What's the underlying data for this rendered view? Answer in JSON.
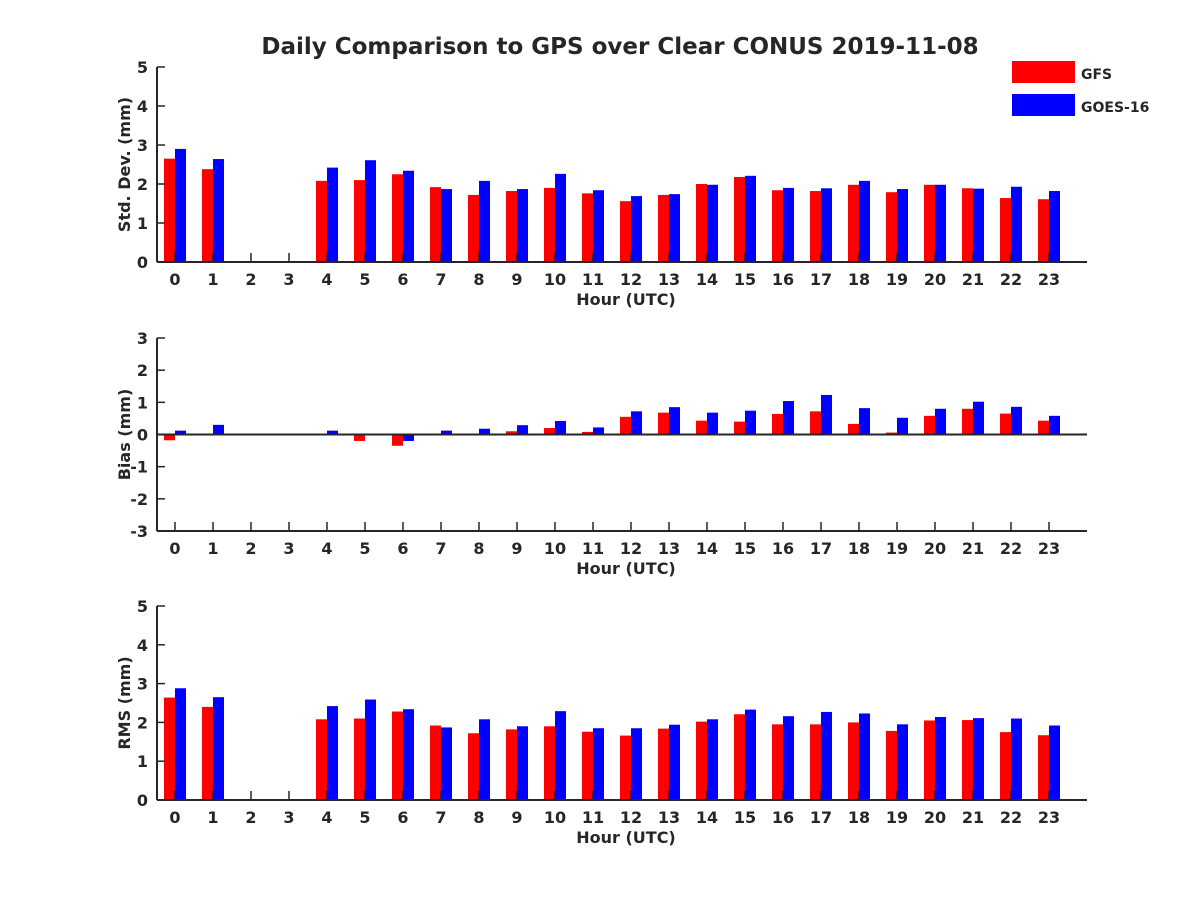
{
  "title": "Daily Comparison to GPS over Clear CONUS 2019-11-08",
  "legend": [
    {
      "name": "GFS",
      "color": "#ff0000"
    },
    {
      "name": "GOES-16",
      "color": "#0000ff"
    }
  ],
  "chart_data": [
    {
      "type": "bar",
      "title": "Daily Comparison to GPS over Clear CONUS 2019-11-08",
      "xlabel": "Hour (UTC)",
      "ylabel": "Std. Dev. (mm)",
      "ylim": [
        0,
        5
      ],
      "yticks": [
        "0",
        "1",
        "2",
        "3",
        "4",
        "5"
      ],
      "categories": [
        "0",
        "1",
        "2",
        "3",
        "4",
        "5",
        "6",
        "7",
        "8",
        "9",
        "10",
        "11",
        "12",
        "13",
        "14",
        "15",
        "16",
        "17",
        "18",
        "19",
        "20",
        "21",
        "22",
        "23"
      ],
      "series": [
        {
          "name": "GFS",
          "color": "#ff0000",
          "values": [
            2.65,
            2.38,
            null,
            null,
            2.08,
            2.1,
            2.25,
            1.92,
            1.72,
            1.82,
            1.9,
            1.76,
            1.56,
            1.72,
            2.0,
            2.18,
            1.84,
            1.82,
            1.98,
            1.79,
            1.98,
            1.89,
            1.64,
            1.61
          ]
        },
        {
          "name": "GOES-16",
          "color": "#0000ff",
          "values": [
            2.9,
            2.64,
            null,
            null,
            2.42,
            2.61,
            2.34,
            1.87,
            2.08,
            1.87,
            2.26,
            1.84,
            1.69,
            1.74,
            1.98,
            2.21,
            1.9,
            1.89,
            2.08,
            1.87,
            1.98,
            1.88,
            1.93,
            1.82
          ]
        }
      ]
    },
    {
      "type": "bar",
      "xlabel": "Hour (UTC)",
      "ylabel": "Bias (mm)",
      "ylim": [
        -3,
        3
      ],
      "yticks": [
        "-3",
        "-2",
        "-1",
        "0",
        "1",
        "2",
        "3"
      ],
      "categories": [
        "0",
        "1",
        "2",
        "3",
        "4",
        "5",
        "6",
        "7",
        "8",
        "9",
        "10",
        "11",
        "12",
        "13",
        "14",
        "15",
        "16",
        "17",
        "18",
        "19",
        "20",
        "21",
        "22",
        "23"
      ],
      "series": [
        {
          "name": "GFS",
          "color": "#ff0000",
          "values": [
            -0.18,
            0.02,
            null,
            null,
            0.0,
            -0.2,
            -0.35,
            0.03,
            0.0,
            0.1,
            0.2,
            0.08,
            0.55,
            0.68,
            0.43,
            0.4,
            0.64,
            0.72,
            0.33,
            0.06,
            0.58,
            0.8,
            0.65,
            0.43
          ]
        },
        {
          "name": "GOES-16",
          "color": "#0000ff",
          "values": [
            0.12,
            0.3,
            null,
            null,
            0.12,
            0.0,
            -0.2,
            0.12,
            0.18,
            0.29,
            0.42,
            0.22,
            0.72,
            0.85,
            0.68,
            0.74,
            1.04,
            1.23,
            0.82,
            0.52,
            0.8,
            1.02,
            0.86,
            0.58
          ]
        }
      ]
    },
    {
      "type": "bar",
      "xlabel": "Hour (UTC)",
      "ylabel": "RMS (mm)",
      "ylim": [
        0,
        5
      ],
      "yticks": [
        "0",
        "1",
        "2",
        "3",
        "4",
        "5"
      ],
      "categories": [
        "0",
        "1",
        "2",
        "3",
        "4",
        "5",
        "6",
        "7",
        "8",
        "9",
        "10",
        "11",
        "12",
        "13",
        "14",
        "15",
        "16",
        "17",
        "18",
        "19",
        "20",
        "21",
        "22",
        "23"
      ],
      "series": [
        {
          "name": "GFS",
          "color": "#ff0000",
          "values": [
            2.64,
            2.4,
            null,
            null,
            2.08,
            2.1,
            2.28,
            1.92,
            1.72,
            1.82,
            1.9,
            1.76,
            1.66,
            1.84,
            2.02,
            2.21,
            1.95,
            1.95,
            2.0,
            1.78,
            2.05,
            2.06,
            1.75,
            1.67
          ]
        },
        {
          "name": "GOES-16",
          "color": "#0000ff",
          "values": [
            2.88,
            2.65,
            null,
            null,
            2.42,
            2.59,
            2.34,
            1.87,
            2.08,
            1.9,
            2.29,
            1.85,
            1.85,
            1.94,
            2.08,
            2.33,
            2.16,
            2.27,
            2.23,
            1.95,
            2.14,
            2.11,
            2.1,
            1.92
          ]
        }
      ]
    }
  ]
}
